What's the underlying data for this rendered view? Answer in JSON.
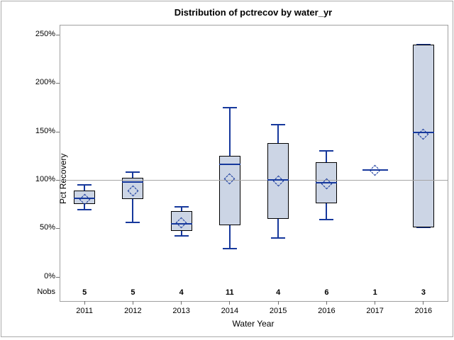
{
  "chart_data": {
    "type": "box",
    "title": "Distribution of pctrecov by water_yr",
    "xlabel": "Water Year",
    "ylabel": "Pct Recovery",
    "nobs_label": "Nobs",
    "categories": [
      "2011",
      "2012",
      "2013",
      "2014",
      "2015",
      "2016",
      "2017",
      "2016"
    ],
    "nobs": [
      5,
      5,
      4,
      11,
      4,
      6,
      1,
      3
    ],
    "y_ticks": [
      {
        "value": 0,
        "label": "0%"
      },
      {
        "value": 50,
        "label": "50%"
      },
      {
        "value": 100,
        "label": "100%"
      },
      {
        "value": 150,
        "label": "150%"
      },
      {
        "value": 200,
        "label": "200%"
      },
      {
        "value": 250,
        "label": "250%"
      }
    ],
    "ylim": [
      0,
      250
    ],
    "refline": 100,
    "grid": "refline-only",
    "boxes": [
      {
        "category": "2011",
        "n": 5,
        "min": 69,
        "q1": 75,
        "median": 81,
        "mean": 80,
        "q3": 89,
        "max": 95
      },
      {
        "category": "2012",
        "n": 5,
        "min": 56,
        "q1": 80,
        "median": 98,
        "mean": 89,
        "q3": 102,
        "max": 108
      },
      {
        "category": "2013",
        "n": 4,
        "min": 42,
        "q1": 47,
        "median": 55,
        "mean": 56,
        "q3": 68,
        "max": 72
      },
      {
        "category": "2014",
        "n": 11,
        "min": 29,
        "q1": 53,
        "median": 116,
        "mean": 101,
        "q3": 125,
        "max": 175
      },
      {
        "category": "2015",
        "n": 4,
        "min": 40,
        "q1": 60,
        "median": 100,
        "mean": 99,
        "q3": 138,
        "max": 157
      },
      {
        "category": "2016",
        "n": 6,
        "min": 59,
        "q1": 76,
        "median": 97,
        "mean": 96,
        "q3": 118,
        "max": 130
      },
      {
        "category": "2017",
        "n": 1,
        "min": 110,
        "q1": 110,
        "median": 110,
        "mean": 110,
        "q3": 110,
        "max": 110
      },
      {
        "category": "2016",
        "n": 3,
        "min": 51,
        "q1": 51,
        "median": 149,
        "mean": 147,
        "q3": 240,
        "max": 240
      }
    ],
    "colors": {
      "box_fill": "#ccd5e5",
      "box_border": "#000000",
      "line": "#16389c",
      "refline": "#a6a6a6",
      "frame": "#a0a0a0",
      "text": "#000000"
    }
  }
}
